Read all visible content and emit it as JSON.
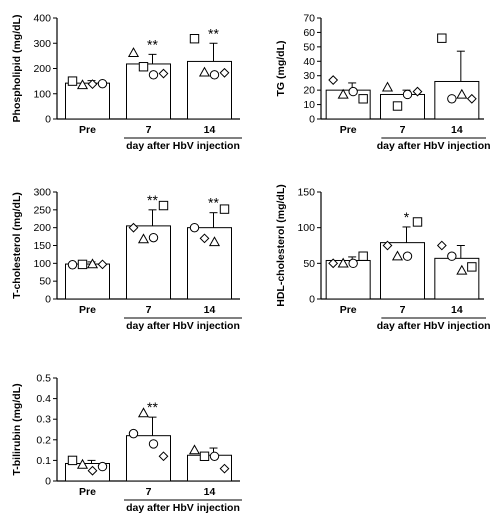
{
  "chart_data": [
    {
      "type": "bar",
      "ylabel": "Phospholipid (mg/dL)",
      "ylim": [
        0,
        400
      ],
      "yticks": [
        0,
        100,
        200,
        300,
        400
      ],
      "categories": [
        "Pre",
        "7",
        "14"
      ],
      "values": [
        142,
        218,
        228
      ],
      "error": [
        10,
        38,
        72
      ],
      "significance": [
        "",
        "**",
        "**"
      ],
      "xlabel": "day after HbV injection",
      "points": [
        [
          {
            "shape": "square",
            "value": 150
          },
          {
            "shape": "triangle",
            "value": 135
          },
          {
            "shape": "diamond",
            "value": 138
          },
          {
            "shape": "circle",
            "value": 140
          }
        ],
        [
          {
            "shape": "triangle",
            "value": 262
          },
          {
            "shape": "square",
            "value": 207
          },
          {
            "shape": "circle",
            "value": 175
          },
          {
            "shape": "diamond",
            "value": 180
          }
        ],
        [
          {
            "shape": "square",
            "value": 318
          },
          {
            "shape": "triangle",
            "value": 185
          },
          {
            "shape": "circle",
            "value": 175
          },
          {
            "shape": "diamond",
            "value": 183
          }
        ]
      ]
    },
    {
      "type": "bar",
      "ylabel": "TG (mg/dL)",
      "ylim": [
        0,
        70
      ],
      "yticks": [
        0,
        10,
        20,
        30,
        40,
        50,
        60,
        70
      ],
      "categories": [
        "Pre",
        "7",
        "14"
      ],
      "values": [
        20,
        17,
        26
      ],
      "error": [
        5,
        3,
        21
      ],
      "significance": [
        "",
        "",
        ""
      ],
      "xlabel": "day after HbV injection",
      "points": [
        [
          {
            "shape": "diamond",
            "value": 27
          },
          {
            "shape": "triangle",
            "value": 17
          },
          {
            "shape": "circle",
            "value": 19
          },
          {
            "shape": "square",
            "value": 14
          }
        ],
        [
          {
            "shape": "triangle",
            "value": 22
          },
          {
            "shape": "square",
            "value": 9
          },
          {
            "shape": "circle",
            "value": 17
          },
          {
            "shape": "diamond",
            "value": 19
          }
        ],
        [
          {
            "shape": "square",
            "value": 56
          },
          {
            "shape": "circle",
            "value": 14
          },
          {
            "shape": "triangle",
            "value": 17
          },
          {
            "shape": "diamond",
            "value": 14
          }
        ]
      ]
    },
    {
      "type": "bar",
      "ylabel": "T-cholesterol (mg/dL)",
      "ylim": [
        0,
        300
      ],
      "yticks": [
        0,
        50,
        100,
        150,
        200,
        250,
        300
      ],
      "categories": [
        "Pre",
        "7",
        "14"
      ],
      "values": [
        98,
        205,
        200
      ],
      "error": [
        6,
        45,
        42
      ],
      "significance": [
        "",
        "**",
        "**"
      ],
      "xlabel": "day after HbV injection",
      "points": [
        [
          {
            "shape": "circle",
            "value": 96
          },
          {
            "shape": "square",
            "value": 97
          },
          {
            "shape": "triangle",
            "value": 98
          },
          {
            "shape": "diamond",
            "value": 97
          }
        ],
        [
          {
            "shape": "diamond",
            "value": 200
          },
          {
            "shape": "triangle",
            "value": 168
          },
          {
            "shape": "circle",
            "value": 172
          },
          {
            "shape": "square",
            "value": 262
          }
        ],
        [
          {
            "shape": "circle",
            "value": 200
          },
          {
            "shape": "diamond",
            "value": 170
          },
          {
            "shape": "triangle",
            "value": 160
          },
          {
            "shape": "square",
            "value": 252
          }
        ]
      ]
    },
    {
      "type": "bar",
      "ylabel": "HDL-cholesterol (mg/dL)",
      "ylim": [
        0,
        150
      ],
      "yticks": [
        0,
        50,
        100,
        150
      ],
      "categories": [
        "Pre",
        "7",
        "14"
      ],
      "values": [
        54,
        79,
        57
      ],
      "error": [
        5,
        22,
        18
      ],
      "significance": [
        "",
        "*",
        ""
      ],
      "xlabel": "day after HbV injection",
      "points": [
        [
          {
            "shape": "diamond",
            "value": 50
          },
          {
            "shape": "triangle",
            "value": 50
          },
          {
            "shape": "circle",
            "value": 50
          },
          {
            "shape": "square",
            "value": 60
          }
        ],
        [
          {
            "shape": "diamond",
            "value": 75
          },
          {
            "shape": "triangle",
            "value": 60
          },
          {
            "shape": "circle",
            "value": 60
          },
          {
            "shape": "square",
            "value": 108
          }
        ],
        [
          {
            "shape": "diamond",
            "value": 75
          },
          {
            "shape": "circle",
            "value": 60
          },
          {
            "shape": "triangle",
            "value": 40
          },
          {
            "shape": "square",
            "value": 45
          }
        ]
      ]
    },
    {
      "type": "bar",
      "ylabel": "T-bilirubin (mg/dL)",
      "ylim": [
        0,
        0.5
      ],
      "yticks": [
        0,
        0.1,
        0.2,
        0.3,
        0.4,
        0.5
      ],
      "categories": [
        "Pre",
        "7",
        "14"
      ],
      "values": [
        0.085,
        0.22,
        0.125
      ],
      "error": [
        0.015,
        0.09,
        0.035
      ],
      "significance": [
        "",
        "**",
        ""
      ],
      "xlabel": "day after HbV injection",
      "points": [
        [
          {
            "shape": "square",
            "value": 0.1
          },
          {
            "shape": "triangle",
            "value": 0.08
          },
          {
            "shape": "diamond",
            "value": 0.05
          },
          {
            "shape": "circle",
            "value": 0.07
          }
        ],
        [
          {
            "shape": "circle",
            "value": 0.23
          },
          {
            "shape": "triangle",
            "value": 0.33
          },
          {
            "shape": "circle",
            "value": 0.18
          },
          {
            "shape": "diamond",
            "value": 0.12
          }
        ],
        [
          {
            "shape": "triangle",
            "value": 0.15
          },
          {
            "shape": "square",
            "value": 0.12
          },
          {
            "shape": "circle",
            "value": 0.12
          },
          {
            "shape": "diamond",
            "value": 0.06
          }
        ]
      ]
    }
  ]
}
